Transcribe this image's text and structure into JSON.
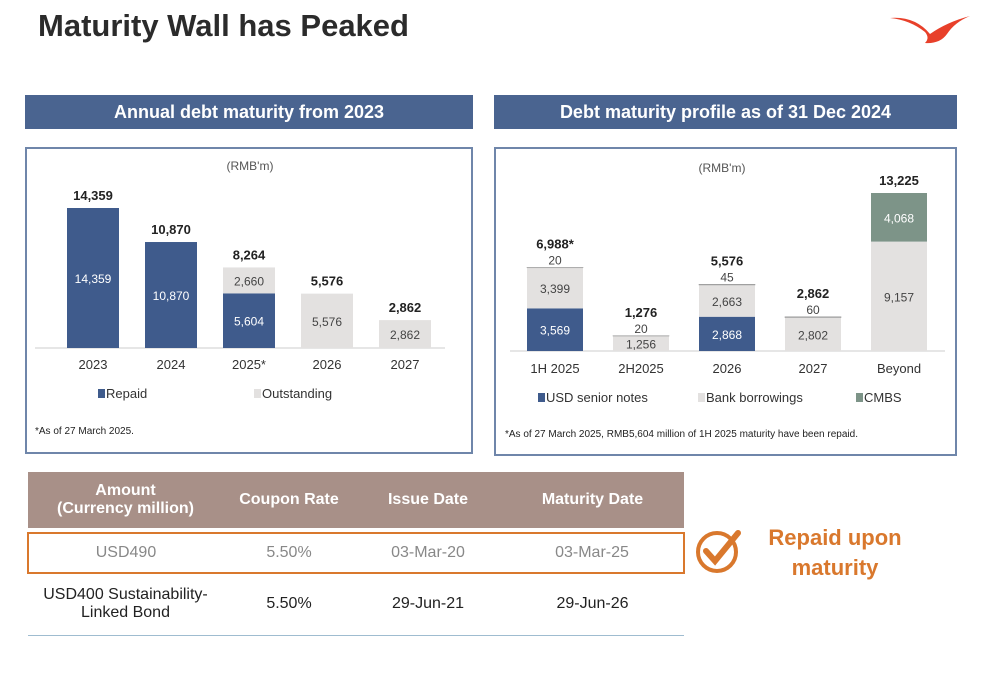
{
  "title": "Maturity Wall has Peaked",
  "chart_data": [
    {
      "type": "bar",
      "stacked": true,
      "title": "Annual debt maturity from 2023",
      "unit": "(RMB'm)",
      "categories": [
        "2023",
        "2024",
        "2025*",
        "2026",
        "2027"
      ],
      "totals": [
        "14,359",
        "10,870",
        "8,264",
        "5,576",
        "2,862"
      ],
      "series": [
        {
          "name": "Repaid",
          "color": "#3f5b8c",
          "values": [
            14359,
            10870,
            5604,
            0,
            0
          ]
        },
        {
          "name": "Outstanding",
          "color": "#e3e1e0",
          "values": [
            0,
            0,
            2660,
            5576,
            2862
          ]
        }
      ],
      "footnote": "*As of 27 March 2025."
    },
    {
      "type": "bar",
      "stacked": true,
      "title": "Debt maturity profile as of 31 Dec 2024",
      "unit": "(RMB'm)",
      "categories": [
        "1H 2025",
        "2H2025",
        "2026",
        "2027",
        "Beyond"
      ],
      "totals": [
        "6,988*",
        "1,276",
        "5,576",
        "2,862",
        "13,225"
      ],
      "series": [
        {
          "name": "USD senior notes",
          "color": "#3f5b8c",
          "values": [
            3569,
            0,
            2868,
            0,
            0
          ]
        },
        {
          "name": "Bank borrowings",
          "color": "#e3e1e0",
          "values": [
            3399,
            1256,
            2663,
            2802,
            9157
          ]
        },
        {
          "name": "",
          "color": "#e3e1e0",
          "values": [
            20,
            20,
            45,
            60,
            0
          ]
        },
        {
          "name": "CMBS",
          "color": "#7d9488",
          "values": [
            0,
            0,
            0,
            0,
            4068
          ]
        }
      ],
      "footnote": "*As of 27 March 2025, RMB5,604 million of 1H 2025 maturity have been repaid."
    }
  ],
  "table": {
    "headers": [
      "Amount\n(Currency million)",
      "Coupon Rate",
      "Issue Date",
      "Maturity Date"
    ],
    "rows": [
      [
        "USD490",
        "5.50%",
        "03-Mar-20",
        "03-Mar-25"
      ],
      [
        "USD400 Sustainability-\nLinked Bond",
        "5.50%",
        "29-Jun-21",
        "29-Jun-26"
      ]
    ]
  },
  "callout": "Repaid upon maturity",
  "colors": {
    "accent": "#d9782d",
    "header": "#4a6490",
    "logo": "#e8402a"
  }
}
